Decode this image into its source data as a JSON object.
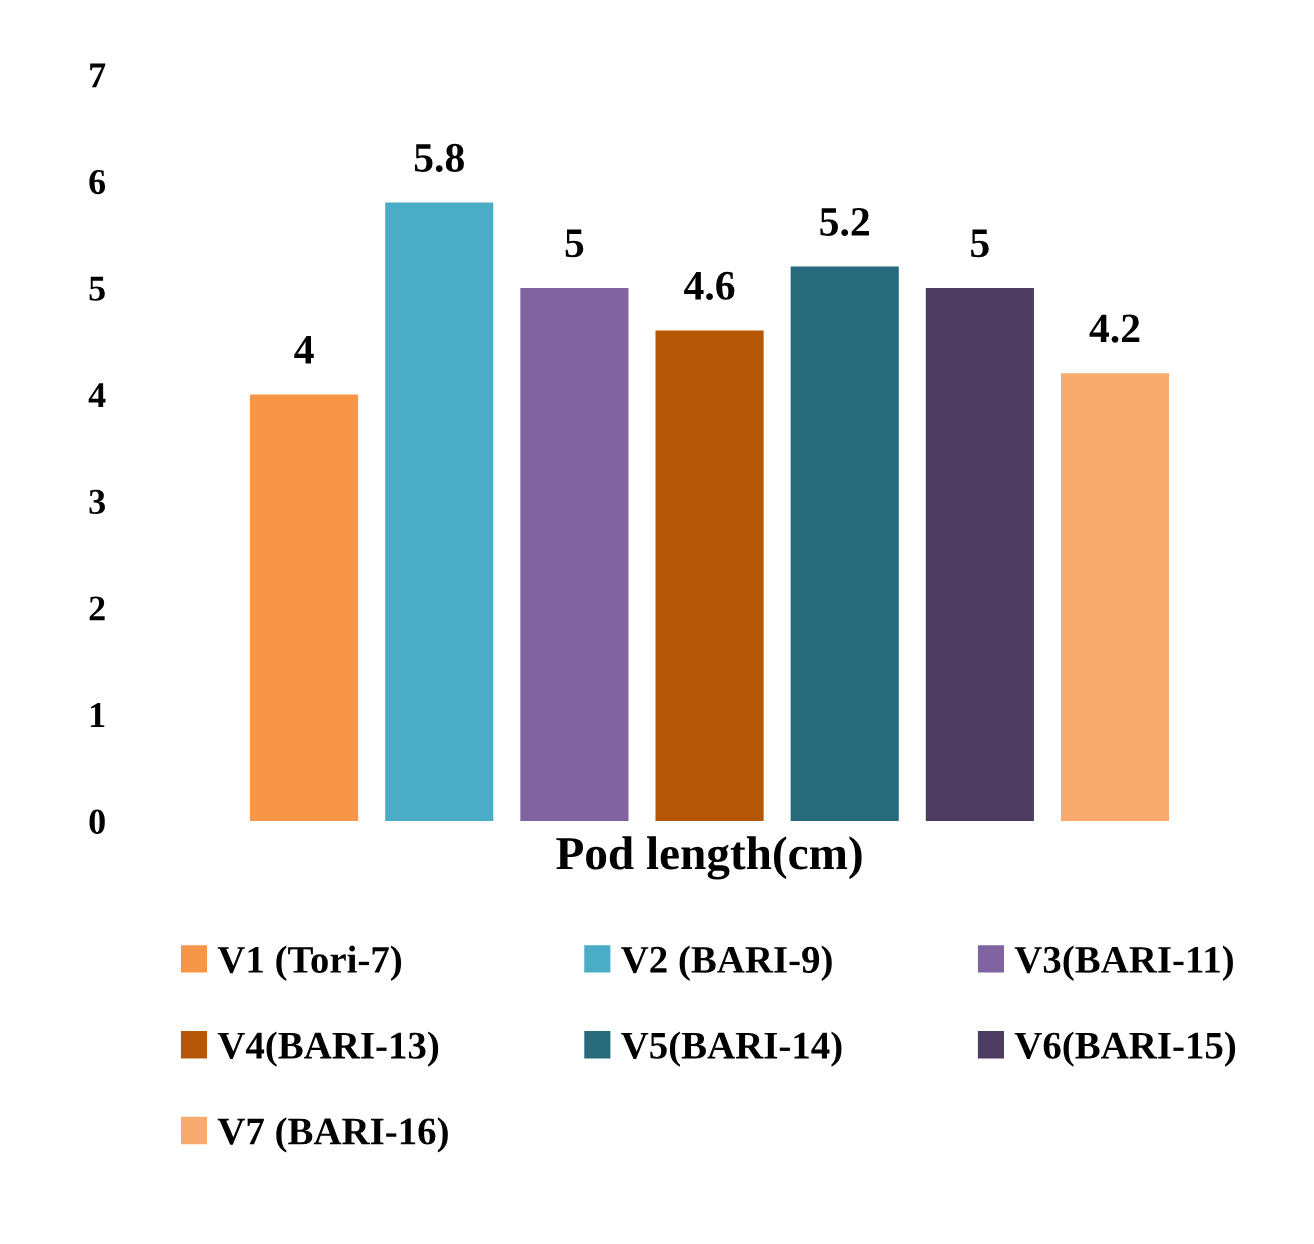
{
  "chart_data": {
    "type": "bar",
    "xlabel": "Pod length(cm)",
    "categories": [
      null
    ],
    "series": [
      {
        "name": "V1 (Tori-7)",
        "color": "#f79646",
        "values": [
          4
        ]
      },
      {
        "name": "V2 (BARI-9)",
        "color": "#4bacc6",
        "values": [
          5.8
        ]
      },
      {
        "name": "V3(BARI-11)",
        "color": "#8064a2",
        "values": [
          5
        ]
      },
      {
        "name": "V4(BARI-13)",
        "color": "#b65708",
        "values": [
          4.6
        ]
      },
      {
        "name": "V5(BARI-14)",
        "color": "#276a7c",
        "values": [
          5.2
        ]
      },
      {
        "name": "V6(BARI-15)",
        "color": "#4d3b62",
        "values": [
          5
        ]
      },
      {
        "name": "V7 (BARI-16)",
        "color": "#f9aa6e",
        "values": [
          4.2
        ]
      }
    ],
    "ylim": [
      0,
      7
    ],
    "yticks": [
      0,
      1,
      2,
      3,
      4,
      5,
      6,
      7
    ],
    "data_labels": true,
    "grid": false,
    "legend": "bottom"
  }
}
